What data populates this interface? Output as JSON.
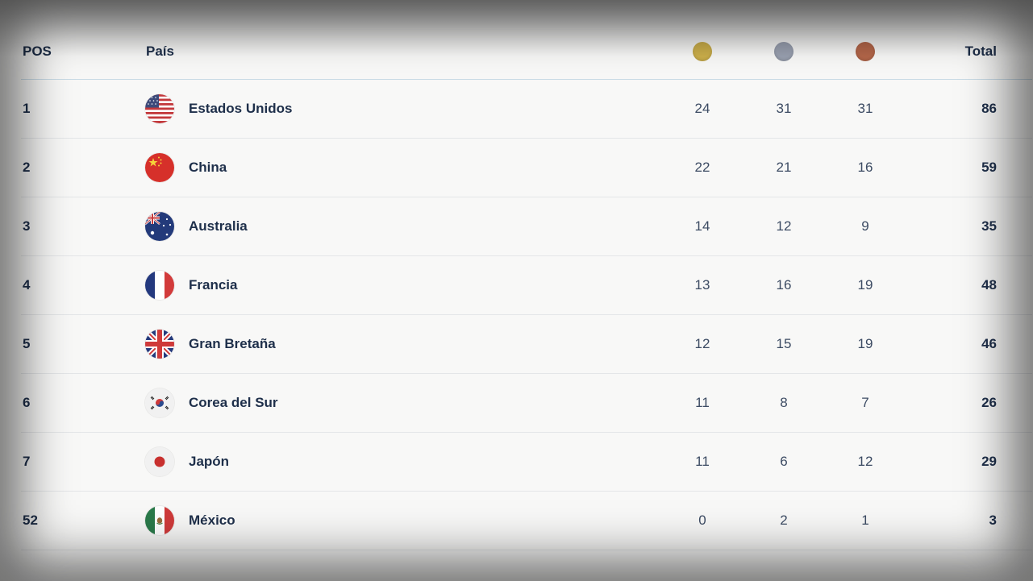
{
  "header": {
    "pos_label": "POS",
    "country_label": "País",
    "gold_icon": "gold-medal-icon",
    "silver_icon": "silver-medal-icon",
    "bronze_icon": "bronze-medal-icon",
    "total_label": "Total"
  },
  "colors": {
    "gold": "#cdb04b",
    "silver": "#9aa1b1",
    "bronze": "#b5674a",
    "text": "#1e2f4a",
    "header_border": "#c9dbe6"
  },
  "rows": [
    {
      "pos": "1",
      "country": "Estados Unidos",
      "flag": "usa-flag-icon",
      "gold": "24",
      "silver": "31",
      "bronze": "31",
      "total": "86"
    },
    {
      "pos": "2",
      "country": "China",
      "flag": "china-flag-icon",
      "gold": "22",
      "silver": "21",
      "bronze": "16",
      "total": "59"
    },
    {
      "pos": "3",
      "country": "Australia",
      "flag": "australia-flag-icon",
      "gold": "14",
      "silver": "12",
      "bronze": "9",
      "total": "35"
    },
    {
      "pos": "4",
      "country": "Francia",
      "flag": "france-flag-icon",
      "gold": "13",
      "silver": "16",
      "bronze": "19",
      "total": "48"
    },
    {
      "pos": "5",
      "country": "Gran Bretaña",
      "flag": "uk-flag-icon",
      "gold": "12",
      "silver": "15",
      "bronze": "19",
      "total": "46"
    },
    {
      "pos": "6",
      "country": "Corea del Sur",
      "flag": "south-korea-flag-icon",
      "gold": "11",
      "silver": "8",
      "bronze": "7",
      "total": "26"
    },
    {
      "pos": "7",
      "country": "Japón",
      "flag": "japan-flag-icon",
      "gold": "11",
      "silver": "6",
      "bronze": "12",
      "total": "29"
    },
    {
      "pos": "52",
      "country": "México",
      "flag": "mexico-flag-icon",
      "gold": "0",
      "silver": "2",
      "bronze": "1",
      "total": "3"
    }
  ]
}
